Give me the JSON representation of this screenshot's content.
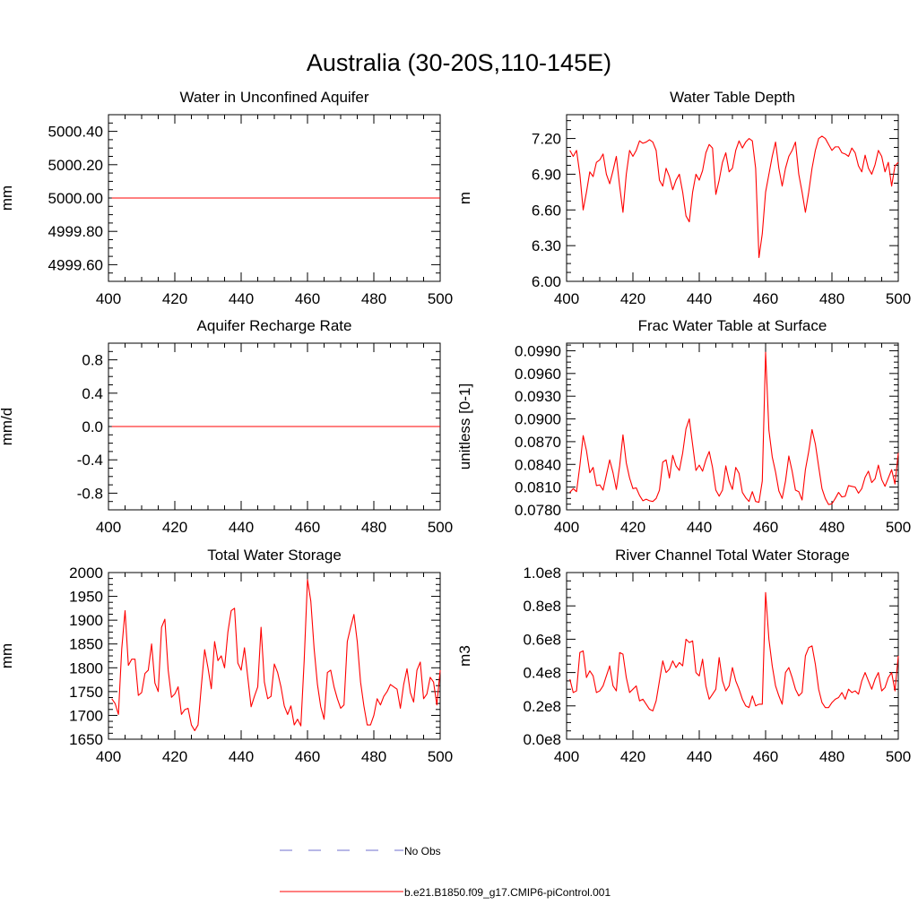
{
  "page": {
    "title": "Australia (30-20S,110-145E)",
    "colors": {
      "series": "#ff0000",
      "obs": "#6f6fcf",
      "axis": "#000000"
    }
  },
  "legend": {
    "obs_label": "No Obs",
    "model_label": "b.e21.B1850.f09_g17.CMIP6-piControl.001"
  },
  "chart_data": [
    {
      "type": "line",
      "title": "Water in Unconfined Aquifer",
      "ylabel": "mm",
      "xlim": [
        400,
        500
      ],
      "ylim": [
        4999.5,
        5000.5
      ],
      "xticks": [
        400,
        420,
        440,
        460,
        480,
        500
      ],
      "xtick_labels": [
        "400",
        "420",
        "440",
        "460",
        "480",
        "500"
      ],
      "yticks": [
        4999.6,
        4999.8,
        5000.0,
        5000.2,
        5000.4
      ],
      "ytick_labels": [
        "4999.60",
        "4999.80",
        "5000.00",
        "5000.20",
        "5000.40"
      ],
      "x": [
        401,
        500
      ],
      "values": [
        5000.0,
        5000.0
      ]
    },
    {
      "type": "line",
      "title": "Water Table Depth",
      "ylabel": "m",
      "xlim": [
        400,
        500
      ],
      "ylim": [
        6.0,
        7.4
      ],
      "xticks": [
        400,
        420,
        440,
        460,
        480,
        500
      ],
      "xtick_labels": [
        "400",
        "420",
        "440",
        "460",
        "480",
        "500"
      ],
      "yticks": [
        6.0,
        6.3,
        6.6,
        6.9,
        7.2
      ],
      "ytick_labels": [
        "6.00",
        "6.30",
        "6.60",
        "6.90",
        "7.20"
      ],
      "x": [
        401,
        402,
        403,
        404,
        405,
        406,
        407,
        408,
        409,
        410,
        411,
        412,
        413,
        414,
        415,
        416,
        417,
        418,
        419,
        420,
        421,
        422,
        423,
        424,
        425,
        426,
        427,
        428,
        429,
        430,
        431,
        432,
        433,
        434,
        435,
        436,
        437,
        438,
        439,
        440,
        441,
        442,
        443,
        444,
        445,
        446,
        447,
        448,
        449,
        450,
        451,
        452,
        453,
        454,
        455,
        456,
        457,
        458,
        459,
        460,
        461,
        462,
        463,
        464,
        465,
        466,
        467,
        468,
        469,
        470,
        471,
        472,
        473,
        474,
        475,
        476,
        477,
        478,
        479,
        480,
        481,
        482,
        483,
        484,
        485,
        486,
        487,
        488,
        489,
        490,
        491,
        492,
        493,
        494,
        495,
        496,
        497,
        498,
        499,
        500
      ],
      "values": [
        7.1,
        7.05,
        7.1,
        6.9,
        6.6,
        6.75,
        6.92,
        6.88,
        7.0,
        7.02,
        7.07,
        6.9,
        6.82,
        6.93,
        7.05,
        6.8,
        6.58,
        6.9,
        7.1,
        7.05,
        7.1,
        7.18,
        7.16,
        7.17,
        7.19,
        7.17,
        7.1,
        6.85,
        6.8,
        6.95,
        6.88,
        6.77,
        6.85,
        6.9,
        6.75,
        6.55,
        6.5,
        6.75,
        6.9,
        6.85,
        6.93,
        7.08,
        7.15,
        7.12,
        6.73,
        6.85,
        7.0,
        7.08,
        6.92,
        6.95,
        7.1,
        7.18,
        7.12,
        7.17,
        7.2,
        7.18,
        6.95,
        6.2,
        6.4,
        6.75,
        6.9,
        7.05,
        7.17,
        6.95,
        6.8,
        6.95,
        7.05,
        7.1,
        7.17,
        6.9,
        6.75,
        6.58,
        6.75,
        6.95,
        7.1,
        7.2,
        7.22,
        7.2,
        7.15,
        7.1,
        7.13,
        7.13,
        7.08,
        7.07,
        7.05,
        7.12,
        7.08,
        6.97,
        6.92,
        7.06,
        6.95,
        6.9,
        6.98,
        7.1,
        7.05,
        6.92,
        7.0,
        6.8,
        6.97,
        7.0
      ]
    },
    {
      "type": "line",
      "title": "Aquifer Recharge Rate",
      "ylabel": "mm/d",
      "xlim": [
        400,
        500
      ],
      "ylim": [
        -1.0,
        1.0
      ],
      "xticks": [
        400,
        420,
        440,
        460,
        480,
        500
      ],
      "xtick_labels": [
        "400",
        "420",
        "440",
        "460",
        "480",
        "500"
      ],
      "yticks": [
        -0.8,
        -0.4,
        0.0,
        0.4,
        0.8
      ],
      "ytick_labels": [
        "-0.8",
        "-0.4",
        "0.0",
        "0.4",
        "0.8"
      ],
      "x": [
        401,
        500
      ],
      "values": [
        0.0,
        0.0
      ]
    },
    {
      "type": "line",
      "title": "Frac Water Table at Surface",
      "ylabel": "unitless [0-1]",
      "xlim": [
        400,
        500
      ],
      "ylim": [
        0.078,
        0.1
      ],
      "xticks": [
        400,
        420,
        440,
        460,
        480,
        500
      ],
      "xtick_labels": [
        "400",
        "420",
        "440",
        "460",
        "480",
        "500"
      ],
      "yticks": [
        0.078,
        0.081,
        0.084,
        0.087,
        0.09,
        0.093,
        0.096,
        0.099
      ],
      "ytick_labels": [
        "0.0780",
        "0.0810",
        "0.0840",
        "0.0870",
        "0.0900",
        "0.0930",
        "0.0960",
        "0.0990"
      ],
      "x": [
        401,
        402,
        403,
        404,
        405,
        406,
        407,
        408,
        409,
        410,
        411,
        412,
        413,
        414,
        415,
        416,
        417,
        418,
        419,
        420,
        421,
        422,
        423,
        424,
        425,
        426,
        427,
        428,
        429,
        430,
        431,
        432,
        433,
        434,
        435,
        436,
        437,
        438,
        439,
        440,
        441,
        442,
        443,
        444,
        445,
        446,
        447,
        448,
        449,
        450,
        451,
        452,
        453,
        454,
        455,
        456,
        457,
        458,
        459,
        460,
        461,
        462,
        463,
        464,
        465,
        466,
        467,
        468,
        469,
        470,
        471,
        472,
        473,
        474,
        475,
        476,
        477,
        478,
        479,
        480,
        481,
        482,
        483,
        484,
        485,
        486,
        487,
        488,
        489,
        490,
        491,
        492,
        493,
        494,
        495,
        496,
        497,
        498,
        499,
        500
      ],
      "values": [
        0.0803,
        0.0808,
        0.0804,
        0.0838,
        0.0878,
        0.0858,
        0.0829,
        0.0836,
        0.0812,
        0.0813,
        0.0806,
        0.0826,
        0.0846,
        0.0829,
        0.0807,
        0.0838,
        0.0879,
        0.0842,
        0.0822,
        0.0808,
        0.0809,
        0.0799,
        0.0792,
        0.0794,
        0.0792,
        0.0791,
        0.0795,
        0.0806,
        0.0843,
        0.0846,
        0.0822,
        0.0852,
        0.0838,
        0.0832,
        0.0855,
        0.0887,
        0.09,
        0.0866,
        0.0832,
        0.0839,
        0.0831,
        0.0846,
        0.0857,
        0.0836,
        0.0806,
        0.0798,
        0.0806,
        0.0838,
        0.0818,
        0.0807,
        0.0836,
        0.0828,
        0.0803,
        0.0796,
        0.0791,
        0.0804,
        0.0791,
        0.079,
        0.0818,
        0.0988,
        0.0885,
        0.085,
        0.083,
        0.0805,
        0.0795,
        0.0818,
        0.0851,
        0.0831,
        0.0806,
        0.0804,
        0.0793,
        0.0833,
        0.0857,
        0.0886,
        0.0867,
        0.0837,
        0.0808,
        0.0795,
        0.0787,
        0.0788,
        0.0795,
        0.0803,
        0.0797,
        0.0798,
        0.0812,
        0.0811,
        0.081,
        0.0802,
        0.0808,
        0.0823,
        0.0831,
        0.0816,
        0.0821,
        0.0839,
        0.082,
        0.0811,
        0.0822,
        0.0833,
        0.0814,
        0.0855
      ]
    },
    {
      "type": "line",
      "title": "Total Water Storage",
      "ylabel": "mm",
      "xlim": [
        400,
        500
      ],
      "ylim": [
        1650,
        2000
      ],
      "xticks": [
        400,
        420,
        440,
        460,
        480,
        500
      ],
      "xtick_labels": [
        "400",
        "420",
        "440",
        "460",
        "480",
        "500"
      ],
      "yticks": [
        1650,
        1700,
        1750,
        1800,
        1850,
        1900,
        1950,
        2000
      ],
      "ytick_labels": [
        "1650",
        "1700",
        "1750",
        "1800",
        "1850",
        "1900",
        "1950",
        "2000"
      ],
      "x": [
        401,
        402,
        403,
        404,
        405,
        406,
        407,
        408,
        409,
        410,
        411,
        412,
        413,
        414,
        415,
        416,
        417,
        418,
        419,
        420,
        421,
        422,
        423,
        424,
        425,
        426,
        427,
        428,
        429,
        430,
        431,
        432,
        433,
        434,
        435,
        436,
        437,
        438,
        439,
        440,
        441,
        442,
        443,
        444,
        445,
        446,
        447,
        448,
        449,
        450,
        451,
        452,
        453,
        454,
        455,
        456,
        457,
        458,
        459,
        460,
        461,
        462,
        463,
        464,
        465,
        466,
        467,
        468,
        469,
        470,
        471,
        472,
        473,
        474,
        475,
        476,
        477,
        478,
        479,
        480,
        481,
        482,
        483,
        484,
        485,
        486,
        487,
        488,
        489,
        490,
        491,
        492,
        493,
        494,
        495,
        496,
        497,
        498,
        499,
        500
      ],
      "values": [
        1735,
        1725,
        1702,
        1840,
        1920,
        1805,
        1818,
        1818,
        1742,
        1748,
        1788,
        1795,
        1850,
        1768,
        1750,
        1885,
        1902,
        1795,
        1738,
        1745,
        1760,
        1702,
        1712,
        1715,
        1680,
        1668,
        1680,
        1762,
        1838,
        1800,
        1756,
        1855,
        1815,
        1825,
        1800,
        1875,
        1920,
        1925,
        1810,
        1795,
        1842,
        1780,
        1718,
        1740,
        1760,
        1885,
        1770,
        1735,
        1740,
        1808,
        1790,
        1760,
        1720,
        1702,
        1720,
        1680,
        1692,
        1678,
        1815,
        1985,
        1940,
        1840,
        1765,
        1718,
        1692,
        1790,
        1795,
        1760,
        1735,
        1715,
        1722,
        1855,
        1885,
        1912,
        1855,
        1770,
        1720,
        1680,
        1680,
        1700,
        1735,
        1722,
        1740,
        1750,
        1765,
        1760,
        1755,
        1715,
        1765,
        1798,
        1748,
        1728,
        1795,
        1812,
        1735,
        1745,
        1780,
        1770,
        1722,
        1795
      ]
    },
    {
      "type": "line",
      "title": "River Channel Total Water Storage",
      "ylabel": "m3",
      "xlim": [
        400,
        500
      ],
      "ylim": [
        0,
        100000000
      ],
      "xticks": [
        400,
        420,
        440,
        460,
        480,
        500
      ],
      "xtick_labels": [
        "400",
        "420",
        "440",
        "460",
        "480",
        "500"
      ],
      "yticks": [
        0,
        20000000,
        40000000,
        60000000,
        80000000,
        100000000
      ],
      "ytick_labels": [
        "0.0e8",
        "0.2e8",
        "0.4e8",
        "0.6e8",
        "0.8e8",
        "1.0e8"
      ],
      "x": [
        401,
        402,
        403,
        404,
        405,
        406,
        407,
        408,
        409,
        410,
        411,
        412,
        413,
        414,
        415,
        416,
        417,
        418,
        419,
        420,
        421,
        422,
        423,
        424,
        425,
        426,
        427,
        428,
        429,
        430,
        431,
        432,
        433,
        434,
        435,
        436,
        437,
        438,
        439,
        440,
        441,
        442,
        443,
        444,
        445,
        446,
        447,
        448,
        449,
        450,
        451,
        452,
        453,
        454,
        455,
        456,
        457,
        458,
        459,
        460,
        461,
        462,
        463,
        464,
        465,
        466,
        467,
        468,
        469,
        470,
        471,
        472,
        473,
        474,
        475,
        476,
        477,
        478,
        479,
        480,
        481,
        482,
        483,
        484,
        485,
        486,
        487,
        488,
        489,
        490,
        491,
        492,
        493,
        494,
        495,
        496,
        497,
        498,
        499,
        500
      ],
      "values": [
        36000000,
        28000000,
        29000000,
        52000000,
        53000000,
        37000000,
        41000000,
        38000000,
        28000000,
        29000000,
        32000000,
        38000000,
        44000000,
        32000000,
        29000000,
        52000000,
        51000000,
        37000000,
        28000000,
        30000000,
        32000000,
        23000000,
        24000000,
        21000000,
        18000000,
        17000000,
        23000000,
        35000000,
        47000000,
        40000000,
        42000000,
        47000000,
        43000000,
        46000000,
        44000000,
        60000000,
        58000000,
        59000000,
        40000000,
        38000000,
        48000000,
        32000000,
        24000000,
        27000000,
        30000000,
        49000000,
        35000000,
        29000000,
        32000000,
        43000000,
        35000000,
        30000000,
        24000000,
        20000000,
        19000000,
        26000000,
        20000000,
        21000000,
        21000000,
        88000000,
        60000000,
        44000000,
        32000000,
        26000000,
        21000000,
        40000000,
        43000000,
        37000000,
        30000000,
        26000000,
        28000000,
        50000000,
        55000000,
        56000000,
        45000000,
        30000000,
        22000000,
        19000000,
        19000000,
        22000000,
        24000000,
        25000000,
        28000000,
        24000000,
        30000000,
        28000000,
        29000000,
        27000000,
        35000000,
        40000000,
        35000000,
        30000000,
        36000000,
        40000000,
        29000000,
        31000000,
        37000000,
        40000000,
        29000000,
        50000000
      ]
    }
  ]
}
